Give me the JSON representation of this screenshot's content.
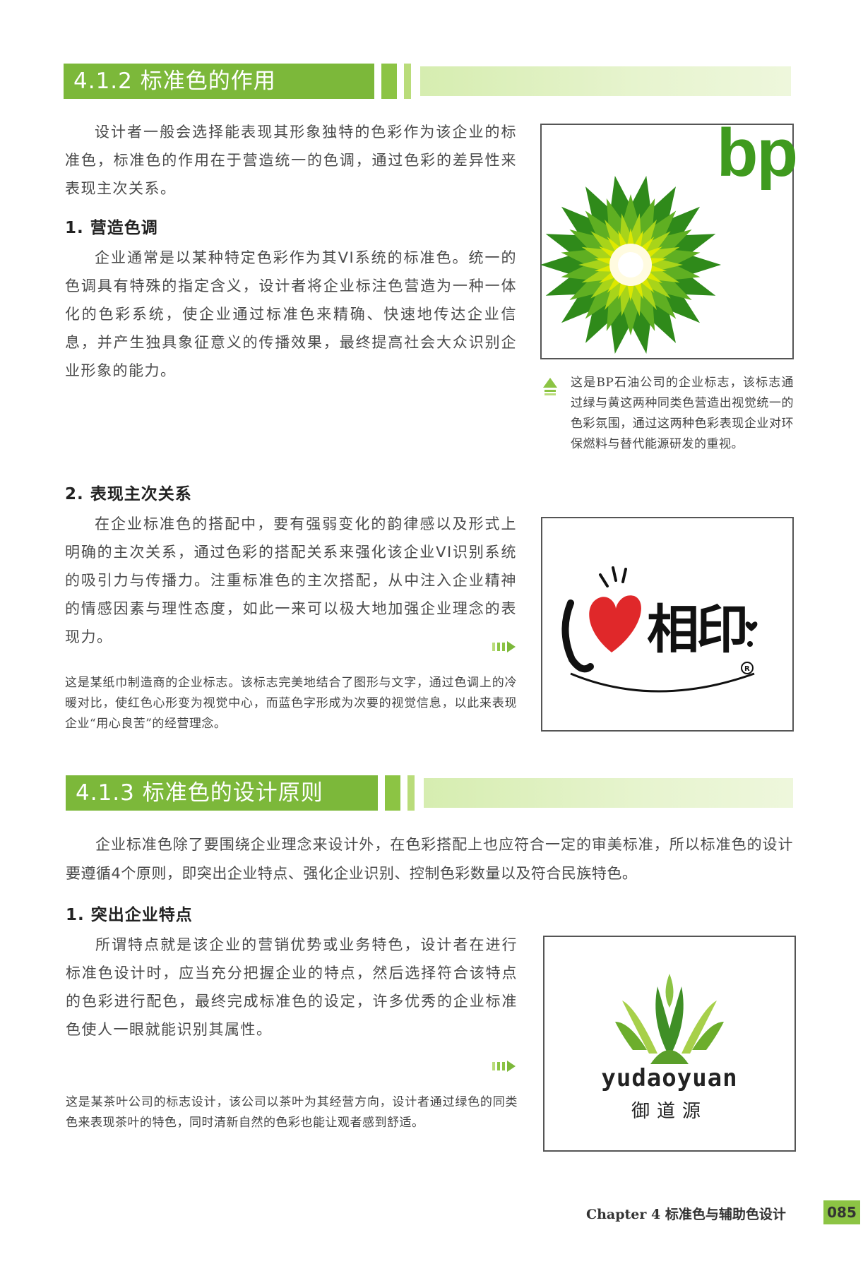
{
  "section_412": {
    "title": "4.1.2 标准色的作用",
    "intro": "设计者一般会选择能表现其形象独特的色彩作为该企业的标准色，标准色的作用在于营造统一的色调，通过色彩的差异性来表现主次关系。",
    "sub1_title": "1. 营造色调",
    "sub1_text": "企业通常是以某种特定色彩作为其VI系统的标准色。统一的色调具有特殊的指定含义，设计者将企业标注色营造为一种一体化的色彩系统，使企业通过标准色来精确、快速地传达企业信息，并产生独具象征意义的传播效果，最终提高社会大众识别企业形象的能力。",
    "bp_logo_text": "bp",
    "bp_caption": "这是BP石油公司的企业标志，该标志通过绿与黄这两种同类色营造出视觉统一的色彩氛围，通过这两种色彩表现企业对环保燃料与替代能源研发的重视。",
    "sub2_title": "2. 表现主次关系",
    "sub2_text": "在企业标准色的搭配中，要有强弱变化的韵律感以及形式上明确的主次关系，通过色彩的搭配关系来强化该企业VI识别系统的吸引力与传播力。注重标准色的主次搭配，从中注入企业精神的情感因素与理性态度，如此一来可以极大地加强企业理念的表现力。",
    "xin_logo_text": "相印",
    "xin_caption": "这是某纸巾制造商的企业标志。该标志完美地结合了图形与文字，通过色调上的冷暖对比，使红色心形变为视觉中心，而蓝色字形成为次要的视觉信息，以此来表现企业“用心良苦”的经营理念。"
  },
  "section_413": {
    "title": "4.1.3 标准色的设计原则",
    "intro": "企业标准色除了要围绕企业理念来设计外，在色彩搭配上也应符合一定的审美标准，所以标准色的设计要遵循4个原则，即突出企业特点、强化企业识别、控制色彩数量以及符合民族特色。",
    "sub1_title": "1. 突出企业特点",
    "sub1_text": "所谓特点就是该企业的营销优势或业务特色，设计者在进行标准色设计时，应当充分把握企业的特点，然后选择符合该特点的色彩进行配色，最终完成标准色的设定，许多优秀的企业标准色使人一眼就能识别其属性。",
    "tea_logo_en": "yudaoyuan",
    "tea_logo_cn": "御道源",
    "tea_caption": "这是某茶叶公司的标志设计，该公司以茶叶为其经营方向，设计者通过绿色的同类色来表现茶叶的特色，同时清新自然的色彩也能让观者感到舒适。"
  },
  "footer": {
    "chapter": "Chapter 4 标准色与辅助色设计",
    "page": "085"
  },
  "colors": {
    "accent_green": "#7cb83a",
    "bp_green": "#3f9a1e",
    "bp_yellow": "#d8e600",
    "heart_red": "#e0282a"
  }
}
